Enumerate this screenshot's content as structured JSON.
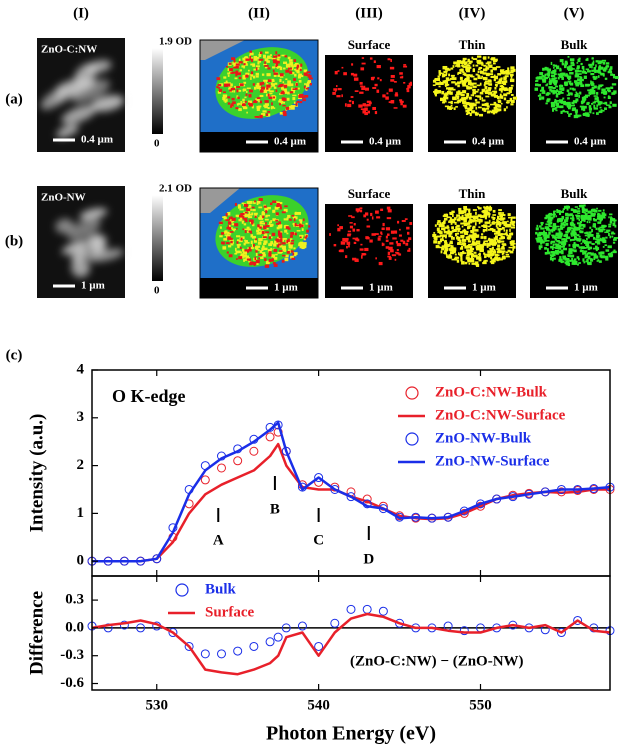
{
  "figure": {
    "columns": [
      "(I)",
      "(II)",
      "(III)",
      "(IV)",
      "(V)"
    ],
    "rows": [
      "(a)",
      "(b)",
      "(c)"
    ],
    "panels": [
      {
        "sample": "ZnO-C:NW",
        "od_max": "1.9 OD",
        "od_min": "0",
        "scale_bars": [
          "0.4 µm",
          "0.4 µm",
          "0.4 µm",
          "0.4 µm",
          "0.4 µm"
        ],
        "phases": [
          "Surface",
          "Thin",
          "Bulk"
        ]
      },
      {
        "sample": "ZnO-NW",
        "od_max": "2.1 OD",
        "od_min": "0",
        "scale_bars": [
          "1 µm",
          "1 µm",
          "1 µm",
          "1 µm",
          "1 µm"
        ],
        "phases": [
          "Surface",
          "Thin",
          "Bulk"
        ]
      }
    ]
  },
  "chart_data": [
    {
      "type": "line",
      "ylabel": "Intensity (a.u.)",
      "annotation": "O K-edge",
      "xlim": [
        526,
        558
      ],
      "xticks": [
        530,
        540,
        550
      ],
      "show_xtick_labels": false,
      "ylim": [
        -0.31,
        4
      ],
      "yticks": [
        0,
        1,
        2,
        3,
        4
      ],
      "legend": "upper right",
      "peak_markers": [
        {
          "label": "A",
          "x": 533.8
        },
        {
          "label": "B",
          "x": 537.3
        },
        {
          "label": "C",
          "x": 540
        },
        {
          "label": "D",
          "x": 543.1
        }
      ],
      "x": [
        526,
        527,
        528,
        529,
        530,
        531,
        532,
        533,
        534,
        535,
        536,
        537,
        537.5,
        538,
        539,
        540,
        541,
        542,
        543,
        544,
        545,
        546,
        547,
        548,
        549,
        550,
        551,
        552,
        553,
        554,
        555,
        556,
        557,
        558
      ],
      "series": [
        {
          "name": "ZnO-C:NW-Bulk",
          "color": "#e8202a",
          "mode": "markers",
          "values": [
            0,
            0,
            0,
            0,
            0.05,
            0.5,
            1.2,
            1.7,
            1.95,
            2.1,
            2.3,
            2.6,
            2.7,
            2.3,
            1.6,
            1.65,
            1.55,
            1.45,
            1.3,
            1.15,
            0.95,
            0.9,
            0.9,
            0.92,
            1.0,
            1.15,
            1.3,
            1.38,
            1.42,
            1.45,
            1.45,
            1.48,
            1.5,
            1.5
          ]
        },
        {
          "name": "ZnO-C:NW-Surface",
          "color": "#e8202a",
          "mode": "line",
          "values": [
            0,
            0,
            0,
            0,
            0.05,
            0.4,
            1.0,
            1.4,
            1.6,
            1.75,
            1.9,
            2.2,
            2.45,
            2.0,
            1.55,
            1.5,
            1.5,
            1.35,
            1.25,
            1.1,
            0.95,
            0.9,
            0.88,
            0.9,
            1.0,
            1.15,
            1.3,
            1.38,
            1.42,
            1.45,
            1.43,
            1.45,
            1.5,
            1.5
          ]
        },
        {
          "name": "ZnO-NW-Bulk",
          "color": "#1a2ee8",
          "mode": "markers",
          "values": [
            0,
            0,
            0,
            0,
            0.05,
            0.7,
            1.5,
            2.0,
            2.2,
            2.35,
            2.55,
            2.8,
            2.85,
            2.3,
            1.55,
            1.75,
            1.5,
            1.35,
            1.2,
            1.1,
            0.92,
            0.92,
            0.9,
            0.92,
            1.05,
            1.2,
            1.3,
            1.35,
            1.4,
            1.45,
            1.5,
            1.5,
            1.52,
            1.55
          ]
        },
        {
          "name": "ZnO-NW-Surface",
          "color": "#1a2ee8",
          "mode": "line",
          "values": [
            0,
            0,
            0,
            0,
            0.05,
            0.6,
            1.4,
            1.9,
            2.15,
            2.3,
            2.5,
            2.75,
            2.9,
            2.3,
            1.5,
            1.75,
            1.5,
            1.35,
            1.15,
            1.1,
            0.9,
            0.92,
            0.9,
            0.92,
            1.05,
            1.2,
            1.3,
            1.35,
            1.4,
            1.45,
            1.5,
            1.5,
            1.52,
            1.55
          ]
        }
      ]
    },
    {
      "type": "line",
      "ylabel": "Difference",
      "xlabel": "Photon Energy (eV)",
      "annotation": "(ZnO-C:NW) − (ZnO-NW)",
      "xlim": [
        526,
        558
      ],
      "xticks": [
        530,
        540,
        550
      ],
      "show_xtick_labels": true,
      "ylim": [
        -0.67,
        0.56
      ],
      "yticks": [
        -0.6,
        -0.3,
        {
          "value": 0,
          "label": "0.0"
        },
        0.3
      ],
      "hline": 0,
      "legend": "upper left",
      "x": [
        526,
        527,
        528,
        529,
        530,
        531,
        532,
        533,
        534,
        535,
        536,
        537,
        537.5,
        538,
        539,
        540,
        541,
        542,
        543,
        544,
        545,
        546,
        547,
        548,
        549,
        550,
        551,
        552,
        553,
        554,
        555,
        556,
        557,
        558
      ],
      "series": [
        {
          "name": "Bulk",
          "color": "#1a2ee8",
          "mode": "markers",
          "values": [
            0.02,
            0.0,
            0.03,
            0.0,
            0.02,
            -0.05,
            -0.2,
            -0.28,
            -0.28,
            -0.25,
            -0.2,
            -0.15,
            -0.1,
            0.0,
            0.02,
            -0.2,
            0.05,
            0.2,
            0.2,
            0.18,
            0.05,
            0.0,
            0.0,
            0.02,
            -0.03,
            0.0,
            0.0,
            0.03,
            0.0,
            -0.02,
            -0.05,
            0.08,
            0.0,
            -0.03
          ]
        },
        {
          "name": "Surface",
          "color": "#e8202a",
          "mode": "line",
          "values": [
            0.0,
            0.03,
            0.05,
            0.08,
            0.04,
            -0.05,
            -0.2,
            -0.45,
            -0.48,
            -0.5,
            -0.45,
            -0.38,
            -0.3,
            -0.1,
            -0.05,
            -0.3,
            -0.05,
            0.1,
            0.15,
            0.12,
            0.05,
            0.0,
            0.0,
            -0.03,
            -0.05,
            -0.05,
            0.0,
            0.03,
            0.0,
            0.03,
            -0.05,
            0.08,
            -0.03,
            -0.05
          ]
        }
      ]
    }
  ]
}
